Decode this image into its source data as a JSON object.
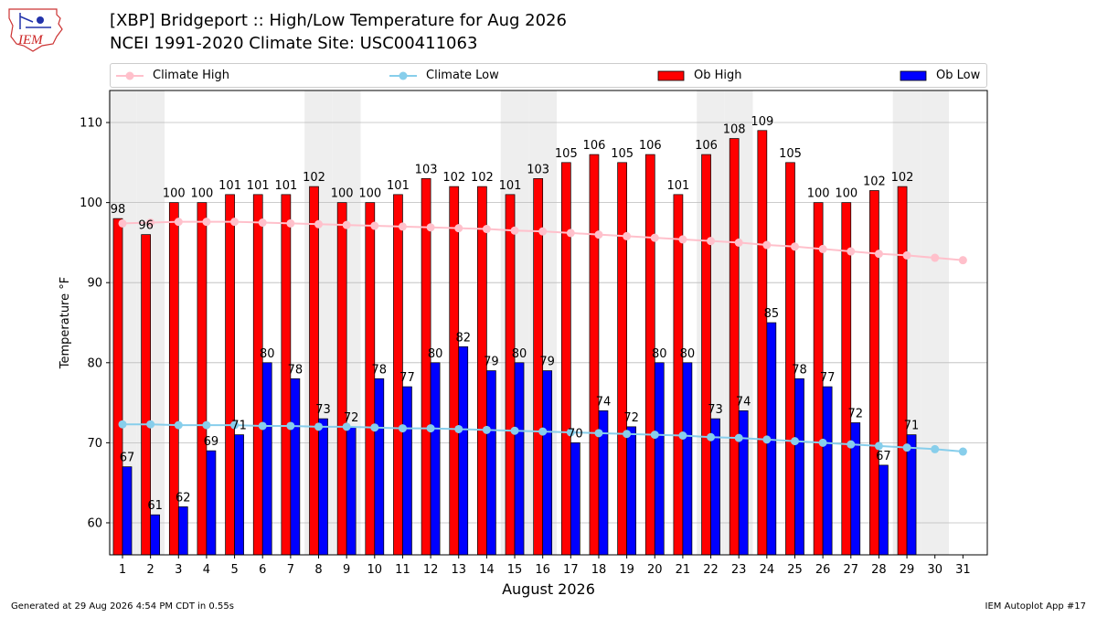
{
  "header": {
    "title_line1": "[XBP] Bridgeport :: High/Low Temperature for Aug 2026",
    "title_line2": "NCEI 1991-2020 Climate Site: USC00411063",
    "logo_text": "IEM"
  },
  "legend": {
    "climate_high": "Climate High",
    "climate_low": "Climate Low",
    "ob_high": "Ob High",
    "ob_low": "Ob Low"
  },
  "footer": {
    "left": "Generated at 29 Aug 2026 4:54 PM CDT in 0.55s",
    "right": "IEM Autoplot App #17"
  },
  "colors": {
    "ob_high": "#ff0000",
    "ob_low": "#0000ff",
    "climate_high": "#ffc0cb",
    "climate_low": "#87ceeb",
    "weekend_shade": "#eeeeee",
    "grid": "#bbbbbb"
  },
  "chart_data": {
    "type": "bar",
    "xlabel": "August 2026",
    "ylabel": "Temperature °F",
    "ylim": [
      56,
      114
    ],
    "yticks": [
      60,
      70,
      80,
      90,
      100,
      110
    ],
    "categories": [
      1,
      2,
      3,
      4,
      5,
      6,
      7,
      8,
      9,
      10,
      11,
      12,
      13,
      14,
      15,
      16,
      17,
      18,
      19,
      20,
      21,
      22,
      23,
      24,
      25,
      26,
      27,
      28,
      29,
      30,
      31
    ],
    "weekend_days": [
      1,
      2,
      8,
      9,
      15,
      16,
      22,
      23,
      29,
      30
    ],
    "series": [
      {
        "name": "Ob High",
        "kind": "bar",
        "values": [
          98,
          96,
          100,
          100,
          101,
          101,
          101,
          102,
          100,
          100,
          101,
          103,
          102,
          102,
          101,
          103,
          105,
          106,
          105,
          106,
          101,
          106,
          108,
          109,
          105,
          100,
          100,
          101.5,
          102,
          null,
          null
        ],
        "labels": [
          "98",
          "96",
          "100",
          "100",
          "101",
          "101",
          "101",
          "102",
          "100",
          "100",
          "101",
          "103",
          "102",
          "102",
          "101",
          "103",
          "105",
          "106",
          "105",
          "106",
          "101",
          "106",
          "108",
          "109",
          "105",
          "100",
          "100",
          "102",
          "102",
          "",
          ""
        ]
      },
      {
        "name": "Ob Low",
        "kind": "bar",
        "values": [
          67,
          61,
          62,
          69,
          71,
          80,
          78,
          73,
          72,
          78,
          77,
          80,
          82,
          79,
          80,
          79,
          70,
          74,
          72,
          80,
          80,
          73,
          74,
          85,
          78,
          77,
          72.5,
          67.2,
          71,
          null,
          null
        ],
        "labels": [
          "67",
          "61",
          "62",
          "69",
          "71",
          "80",
          "78",
          "73",
          "72",
          "78",
          "77",
          "80",
          "82",
          "79",
          "80",
          "79",
          "70",
          "74",
          "72",
          "80",
          "80",
          "73",
          "74",
          "85",
          "78",
          "77",
          "72",
          "67",
          "71",
          "",
          ""
        ]
      },
      {
        "name": "Climate High",
        "kind": "line",
        "values": [
          97.4,
          97.5,
          97.6,
          97.6,
          97.6,
          97.5,
          97.4,
          97.3,
          97.2,
          97.1,
          97.0,
          96.9,
          96.8,
          96.7,
          96.5,
          96.4,
          96.2,
          96.0,
          95.8,
          95.6,
          95.4,
          95.2,
          95.0,
          94.7,
          94.5,
          94.2,
          93.9,
          93.6,
          93.4,
          93.1,
          92.8
        ]
      },
      {
        "name": "Climate Low",
        "kind": "line",
        "values": [
          72.3,
          72.3,
          72.2,
          72.2,
          72.2,
          72.1,
          72.1,
          72.0,
          72.0,
          71.9,
          71.8,
          71.8,
          71.7,
          71.6,
          71.5,
          71.4,
          71.3,
          71.2,
          71.1,
          71.0,
          70.9,
          70.7,
          70.6,
          70.4,
          70.2,
          70.0,
          69.8,
          69.6,
          69.4,
          69.2,
          68.9
        ]
      }
    ]
  }
}
